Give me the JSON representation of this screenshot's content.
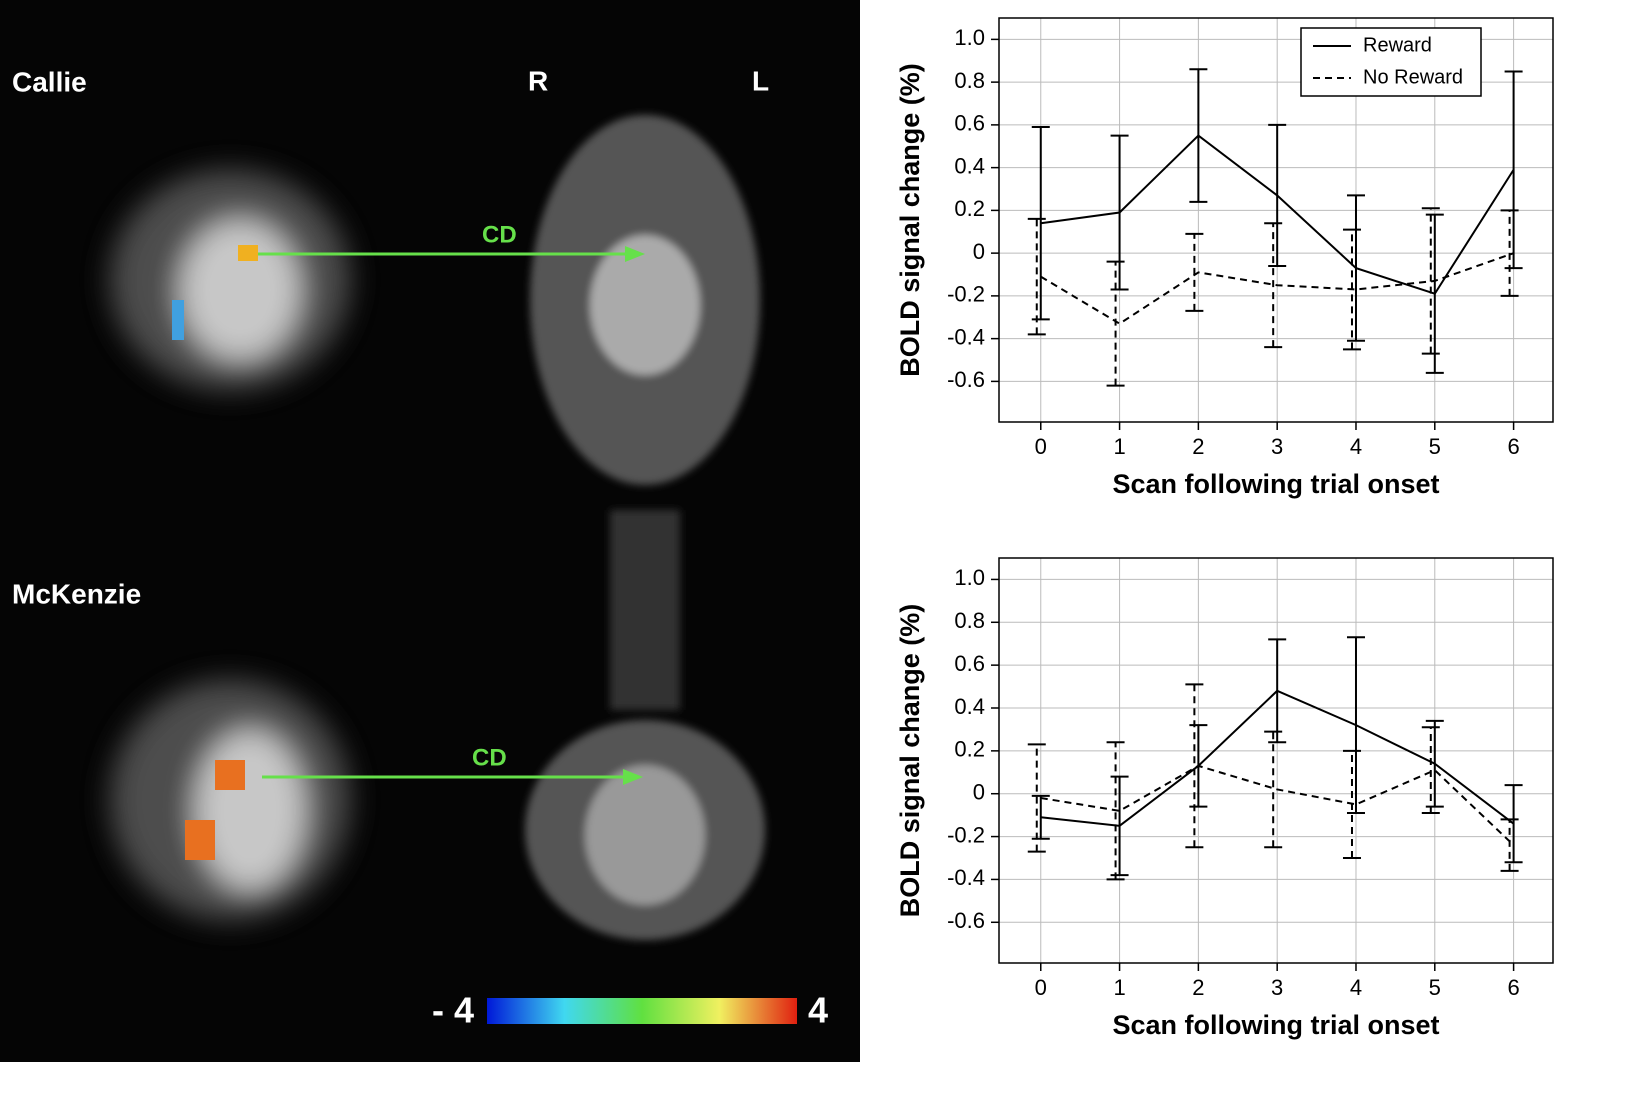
{
  "images": {
    "subjects": [
      "Callie",
      "McKenzie"
    ],
    "orientation": [
      "R",
      "L"
    ],
    "region_labels": [
      "CD",
      "CD"
    ],
    "colorbar": {
      "min_label": "- 4",
      "max_label": "4"
    }
  },
  "chart_data": [
    {
      "type": "line",
      "x_label": "Scan following trial onset",
      "y_label": "BOLD signal change (%)",
      "x": [
        0,
        1,
        2,
        3,
        4,
        5,
        6
      ],
      "xlim": [
        -0.53,
        6.5
      ],
      "xticks": [
        0,
        1,
        2,
        3,
        4,
        5,
        6
      ],
      "ylim": [
        -0.79,
        1.1
      ],
      "yticks": [
        -0.6,
        -0.4,
        -0.2,
        0,
        0.2,
        0.4,
        0.6,
        0.8,
        {
          "value": 1,
          "label": "1.0"
        }
      ],
      "grid": true,
      "legend": "upper right",
      "series": [
        {
          "name": "Reward",
          "color": "#000000",
          "line_style": "solid",
          "values": [
            0.14,
            0.19,
            0.55,
            0.27,
            -0.07,
            -0.19,
            0.39
          ],
          "errors": [
            0.45,
            0.36,
            0.31,
            0.33,
            0.34,
            0.37,
            0.46
          ]
        },
        {
          "name": "No Reward",
          "color": "#000000",
          "line_style": "dashed",
          "values": [
            -0.11,
            -0.33,
            -0.09,
            -0.15,
            -0.17,
            -0.13,
            0.0
          ],
          "errors": [
            0.27,
            0.29,
            0.18,
            0.29,
            0.28,
            0.34,
            0.2
          ]
        }
      ]
    },
    {
      "type": "line",
      "x_label": "Scan following trial onset",
      "y_label": "BOLD signal change (%)",
      "x": [
        0,
        1,
        2,
        3,
        4,
        5,
        6
      ],
      "xlim": [
        -0.53,
        6.5
      ],
      "xticks": [
        0,
        1,
        2,
        3,
        4,
        5,
        6
      ],
      "ylim": [
        -0.79,
        1.1
      ],
      "yticks": [
        -0.6,
        -0.4,
        -0.2,
        0,
        0.2,
        0.4,
        0.6,
        0.8,
        {
          "value": 1,
          "label": "1.0"
        }
      ],
      "grid": true,
      "series": [
        {
          "color": "#000000",
          "line_style": "solid",
          "values": [
            -0.11,
            -0.15,
            0.13,
            0.48,
            0.32,
            0.14,
            -0.14
          ],
          "errors": [
            0.1,
            0.23,
            0.19,
            0.24,
            0.41,
            0.2,
            0.18
          ]
        },
        {
          "color": "#000000",
          "line_style": "dashed",
          "values": [
            -0.02,
            -0.08,
            0.13,
            0.02,
            -0.05,
            0.11,
            -0.24
          ],
          "errors": [
            0.25,
            0.32,
            0.38,
            0.27,
            0.25,
            0.2,
            0.12
          ]
        }
      ]
    }
  ]
}
